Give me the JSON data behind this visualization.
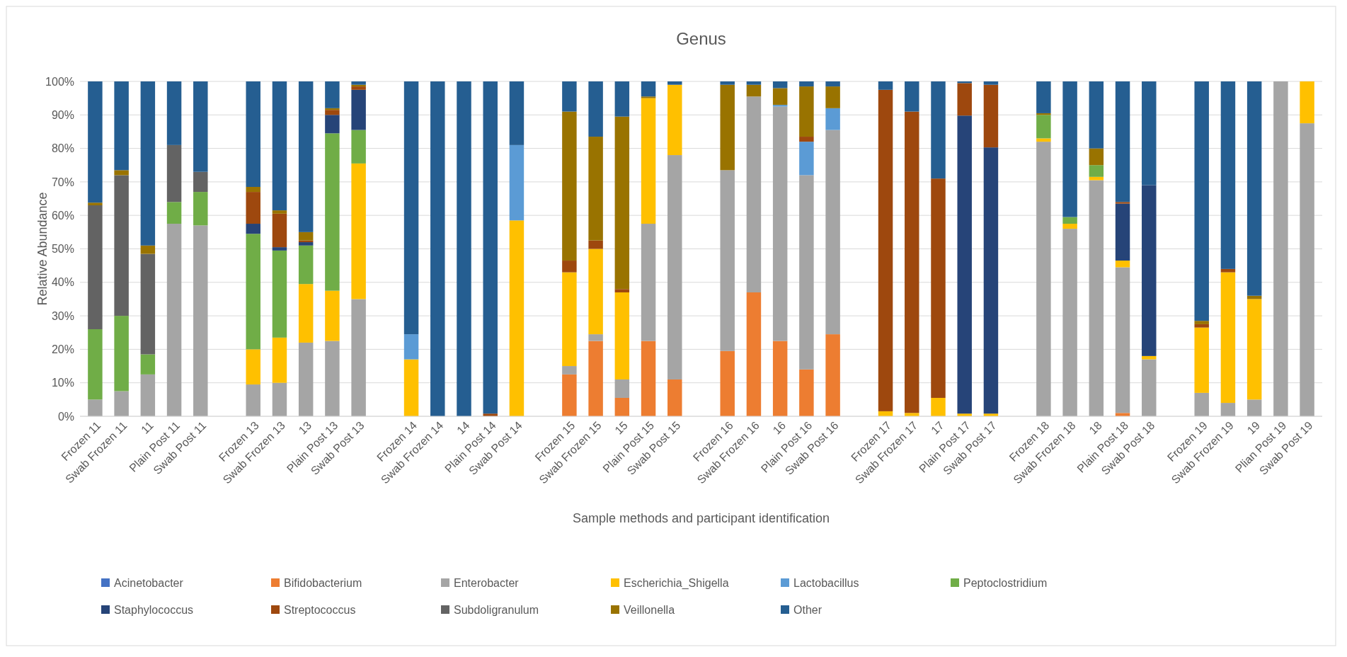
{
  "chart_data": {
    "type": "bar",
    "stacked": true,
    "title": "Genus",
    "xlabel": "Sample methods and participant identification",
    "ylabel": "Relative Abundance",
    "categories": [
      "Frozen 11",
      "Swab Frozen 11",
      "11",
      "Plain Post 11",
      "Swab Post 11",
      null,
      "Frozen 13",
      "Swab Frozen 13",
      "13",
      "Plain Post 13",
      "Swab Post 13",
      null,
      "Frozen 14",
      "Swab Frozen 14",
      "14",
      "Plain Post 14",
      "Swab Post 14",
      null,
      "Frozen 15",
      "Swab Frozen 15",
      "15",
      "Plain Post 15",
      "Swab Post 15",
      null,
      "Frozen 16",
      "Swab Frozen 16",
      "16",
      "Plain Post 16",
      "Swab Post 16",
      null,
      "Frozen 17",
      "Swab Frozen 17",
      "17",
      "Plain Post 17",
      "Swab Post 17",
      null,
      "Frozen 18",
      "Swab Frozen 18",
      "18",
      "Plain Post 18",
      "Swab Post 18",
      null,
      "Frozen 19",
      "Swab Frozen 19",
      "19",
      "Plian Post 19",
      "Swab Post 19"
    ],
    "ylim": [
      0,
      100
    ],
    "yticks": [
      {
        "value": 0,
        "label": "0%"
      },
      {
        "value": 10,
        "label": "10%"
      },
      {
        "value": 20,
        "label": "20%"
      },
      {
        "value": 30,
        "label": "30%"
      },
      {
        "value": 40,
        "label": "40%"
      },
      {
        "value": 50,
        "label": "50%"
      },
      {
        "value": 60,
        "label": "60%"
      },
      {
        "value": 70,
        "label": "70%"
      },
      {
        "value": 80,
        "label": "80%"
      },
      {
        "value": 90,
        "label": "90%"
      },
      {
        "value": 100,
        "label": "100%"
      }
    ],
    "grid": "y",
    "legend": "bottom",
    "series": [
      {
        "name": "Acinetobacter",
        "color": "#4472c4",
        "values": [
          0,
          0,
          0,
          0,
          0,
          null,
          0,
          0,
          0,
          0,
          0,
          null,
          0,
          0,
          0,
          0,
          0,
          null,
          0,
          0,
          0,
          0,
          0,
          null,
          0,
          0,
          0,
          0,
          0,
          null,
          0,
          0,
          0,
          0,
          0,
          null,
          0,
          0,
          0,
          0,
          0,
          null,
          0,
          0,
          0,
          0,
          0
        ]
      },
      {
        "name": "Bifidobacterium",
        "color": "#ed7d31",
        "values": [
          0,
          0,
          0,
          0,
          0,
          null,
          0,
          0,
          0,
          0,
          0,
          null,
          0,
          0,
          0,
          0,
          0,
          null,
          12.5,
          22.5,
          5.5,
          22.5,
          11,
          null,
          19.5,
          37,
          22.5,
          14,
          24.5,
          null,
          0,
          0,
          0,
          0,
          0,
          null,
          0,
          0,
          0,
          1,
          0,
          null,
          0,
          0,
          0,
          0,
          0
        ]
      },
      {
        "name": "Enterobacter",
        "color": "#a5a5a5",
        "values": [
          5,
          7.5,
          12.5,
          57.5,
          57,
          null,
          9.5,
          10,
          22,
          22.5,
          35,
          null,
          0,
          0,
          0,
          0,
          0,
          null,
          2.5,
          2,
          5.5,
          35,
          67,
          null,
          54,
          58.5,
          70,
          58,
          61,
          null,
          0,
          0,
          0,
          0,
          0,
          null,
          82,
          56,
          70.5,
          43.5,
          17,
          null,
          7,
          4,
          5,
          100,
          87.5
        ]
      },
      {
        "name": "Escherichia_Shigella",
        "color": "#ffc000",
        "values": [
          0,
          0,
          0,
          0,
          0,
          null,
          10.5,
          13.5,
          17.5,
          15,
          40.5,
          null,
          17,
          0,
          0,
          0,
          58.5,
          null,
          28,
          25.5,
          26,
          37.5,
          21,
          null,
          0,
          0,
          0,
          0,
          0,
          null,
          1.5,
          1,
          5.5,
          0.8,
          0.8,
          null,
          1,
          1.5,
          1,
          2,
          1,
          null,
          19.5,
          39,
          30,
          0,
          12.5
        ]
      },
      {
        "name": "Lactobacillus",
        "color": "#5b9bd5",
        "values": [
          0,
          0,
          0,
          0,
          0,
          null,
          0,
          0,
          0,
          0,
          0,
          null,
          7.5,
          0,
          0,
          0,
          22.5,
          null,
          0,
          0,
          0,
          0,
          0,
          null,
          0,
          0,
          0.5,
          10,
          6.5,
          null,
          0,
          0,
          0,
          0,
          0,
          null,
          0,
          0,
          0,
          0,
          0,
          null,
          0,
          0,
          0,
          0,
          0
        ]
      },
      {
        "name": "Peptoclostridium",
        "color": "#70ad47",
        "values": [
          21,
          22.5,
          6,
          6.5,
          10,
          null,
          34.5,
          26,
          11.5,
          47,
          10,
          null,
          0,
          0,
          0,
          0,
          0,
          null,
          0,
          0,
          0,
          0,
          0,
          null,
          0,
          0,
          0,
          0,
          0,
          null,
          0,
          0,
          0,
          0,
          0,
          null,
          7,
          2,
          3.5,
          0,
          0,
          null,
          0,
          0,
          0,
          0,
          0
        ]
      },
      {
        "name": "Staphylococcus",
        "color": "#264478",
        "values": [
          0,
          0,
          0,
          0,
          0,
          null,
          3,
          1,
          1,
          5.5,
          12,
          null,
          0,
          0,
          0,
          0,
          0,
          null,
          0,
          0,
          0,
          0,
          0,
          null,
          0,
          0,
          0,
          0,
          0,
          null,
          0,
          0,
          0,
          89,
          79.5,
          null,
          0,
          0,
          0,
          17,
          51,
          null,
          0,
          0,
          0,
          0,
          0
        ]
      },
      {
        "name": "Streptococcus",
        "color": "#9e480e",
        "values": [
          0,
          0,
          0,
          0,
          0,
          null,
          9.5,
          10,
          0.5,
          1.5,
          1,
          null,
          0,
          0,
          0,
          0.8,
          0,
          null,
          3.5,
          2.5,
          1,
          0,
          0,
          null,
          0,
          0,
          0,
          1.5,
          0,
          null,
          96,
          90,
          65.5,
          9.7,
          18.7,
          null,
          0,
          0,
          0,
          0.5,
          0,
          null,
          1,
          1,
          0,
          0,
          0
        ]
      },
      {
        "name": "Subdoligranulum",
        "color": "#636363",
        "values": [
          37,
          42,
          30,
          17,
          6,
          null,
          0,
          0,
          0,
          0,
          0,
          null,
          0,
          0,
          0,
          0,
          0,
          null,
          0,
          0,
          0,
          0,
          0,
          null,
          0,
          0,
          0,
          0,
          0,
          null,
          0,
          0,
          0,
          0,
          0,
          null,
          0,
          0,
          0,
          0,
          0,
          null,
          0,
          0,
          0,
          0,
          0
        ]
      },
      {
        "name": "Veillonella",
        "color": "#997300",
        "values": [
          0.8,
          1.5,
          2.5,
          0,
          0,
          null,
          1.5,
          1,
          2.5,
          0.5,
          0.5,
          null,
          0,
          0,
          0,
          0,
          0,
          null,
          44.5,
          31,
          51.5,
          0.5,
          0,
          null,
          25.5,
          3.5,
          5,
          15,
          6.5,
          null,
          0,
          0,
          0,
          0,
          0,
          null,
          0.5,
          0,
          5,
          0,
          0,
          null,
          1,
          0,
          1,
          0,
          0
        ]
      },
      {
        "name": "Other",
        "color": "#255e91",
        "values": [
          36.2,
          26.5,
          49,
          19,
          27,
          null,
          31.5,
          38.5,
          45,
          8,
          1,
          null,
          75.5,
          100,
          100,
          99.2,
          19,
          null,
          9,
          16.5,
          10.5,
          4.5,
          1,
          null,
          1,
          1,
          2,
          1.5,
          1.5,
          null,
          2.5,
          9,
          29,
          0.5,
          1,
          null,
          9.5,
          40.5,
          20,
          36,
          31,
          null,
          71.5,
          56,
          64,
          0,
          0
        ]
      }
    ]
  }
}
